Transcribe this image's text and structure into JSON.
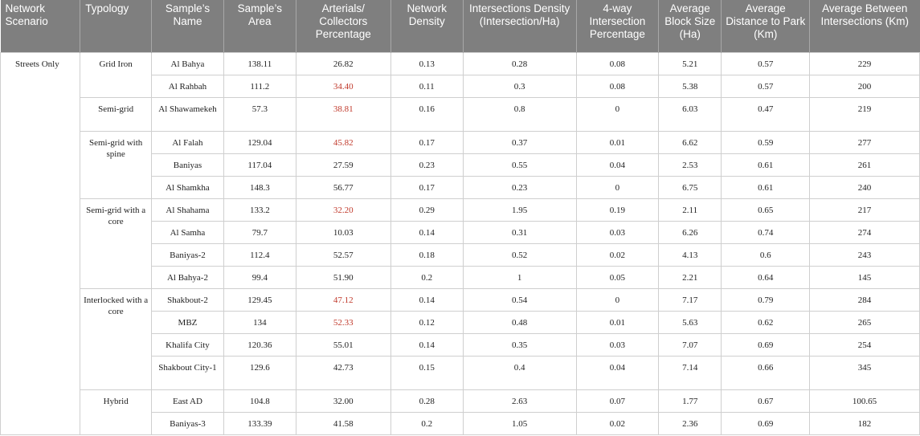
{
  "headers": [
    "Network Scenario",
    "Typology",
    "Sample’s Name",
    "Sample’s Area",
    "Arterials/ Collectors Percentage",
    "Network Density",
    "Intersections Density (Intersection/Ha)",
    "4-way Intersection Percentage",
    "Average Block Size (Ha)",
    "Average Distance to Park (Km)",
    "Average Between Intersections (Km)"
  ],
  "scenario": "Streets Only",
  "typologies": [
    "Grid Iron",
    "Semi-grid",
    "Semi-grid with spine",
    "Semi-grid with a core",
    "Interlocked with a core",
    "Hybrid"
  ],
  "rows": [
    {
      "name": "Al Bahya",
      "area": "138.11",
      "art": "26.82",
      "art_red": false,
      "nd": "0.13",
      "id": "0.28",
      "fw": "0.08",
      "bs": "5.21",
      "dp": "0.57",
      "bi": "229"
    },
    {
      "name": "Al Rahbah",
      "area": "111.2",
      "art": "34.40",
      "art_red": true,
      "nd": "0.11",
      "id": "0.3",
      "fw": "0.08",
      "bs": "5.38",
      "dp": "0.57",
      "bi": "200"
    },
    {
      "name": "Al Shawamekeh",
      "area": "57.3",
      "art": "38.81",
      "art_red": true,
      "nd": "0.16",
      "id": "0.8",
      "fw": "0",
      "bs": "6.03",
      "dp": "0.47",
      "bi": "219"
    },
    {
      "name": "Al Falah",
      "area": "129.04",
      "art": "45.82",
      "art_red": true,
      "nd": "0.17",
      "id": "0.37",
      "fw": "0.01",
      "bs": "6.62",
      "dp": "0.59",
      "bi": "277"
    },
    {
      "name": "Baniyas",
      "area": "117.04",
      "art": "27.59",
      "art_red": false,
      "nd": "0.23",
      "id": "0.55",
      "fw": "0.04",
      "bs": "2.53",
      "dp": "0.61",
      "bi": "261"
    },
    {
      "name": "Al Shamkha",
      "area": "148.3",
      "art": "56.77",
      "art_red": false,
      "nd": "0.17",
      "id": "0.23",
      "fw": "0",
      "bs": "6.75",
      "dp": "0.61",
      "bi": "240"
    },
    {
      "name": "Al Shahama",
      "area": "133.2",
      "art": "32.20",
      "art_red": true,
      "nd": "0.29",
      "id": "1.95",
      "fw": "0.19",
      "bs": "2.11",
      "dp": "0.65",
      "bi": "217"
    },
    {
      "name": "Al Samha",
      "area": "79.7",
      "art": "10.03",
      "art_red": false,
      "nd": "0.14",
      "id": "0.31",
      "fw": "0.03",
      "bs": "6.26",
      "dp": "0.74",
      "bi": "274"
    },
    {
      "name": "Baniyas-2",
      "area": "112.4",
      "art": "52.57",
      "art_red": false,
      "nd": "0.18",
      "id": "0.52",
      "fw": "0.02",
      "bs": "4.13",
      "dp": "0.6",
      "bi": "243"
    },
    {
      "name": "Al Bahya-2",
      "area": "99.4",
      "art": "51.90",
      "art_red": false,
      "nd": "0.2",
      "id": "1",
      "fw": "0.05",
      "bs": "2.21",
      "dp": "0.64",
      "bi": "145"
    },
    {
      "name": "Shakbout-2",
      "area": "129.45",
      "art": "47.12",
      "art_red": true,
      "nd": "0.14",
      "id": "0.54",
      "fw": "0",
      "bs": "7.17",
      "dp": "0.79",
      "bi": "284"
    },
    {
      "name": "MBZ",
      "area": "134",
      "art": "52.33",
      "art_red": true,
      "nd": "0.12",
      "id": "0.48",
      "fw": "0.01",
      "bs": "5.63",
      "dp": "0.62",
      "bi": "265"
    },
    {
      "name": "Khalifa City",
      "area": "120.36",
      "art": "55.01",
      "art_red": false,
      "nd": "0.14",
      "id": "0.35",
      "fw": "0.03",
      "bs": "7.07",
      "dp": "0.69",
      "bi": "254"
    },
    {
      "name": "Shakbout City-1",
      "area": "129.6",
      "art": "42.73",
      "art_red": false,
      "nd": "0.15",
      "id": "0.4",
      "fw": "0.04",
      "bs": "7.14",
      "dp": "0.66",
      "bi": "345"
    },
    {
      "name": "East AD",
      "area": "104.8",
      "art": "32.00",
      "art_red": false,
      "nd": "0.28",
      "id": "2.63",
      "fw": "0.07",
      "bs": "1.77",
      "dp": "0.67",
      "bi": "100.65"
    },
    {
      "name": "Baniyas-3",
      "area": "133.39",
      "art": "41.58",
      "art_red": false,
      "nd": "0.2",
      "id": "1.05",
      "fw": "0.02",
      "bs": "2.36",
      "dp": "0.69",
      "bi": "182"
    }
  ],
  "colors": {
    "header_bg": "#7f7f7f",
    "highlight": "#c0392b"
  }
}
